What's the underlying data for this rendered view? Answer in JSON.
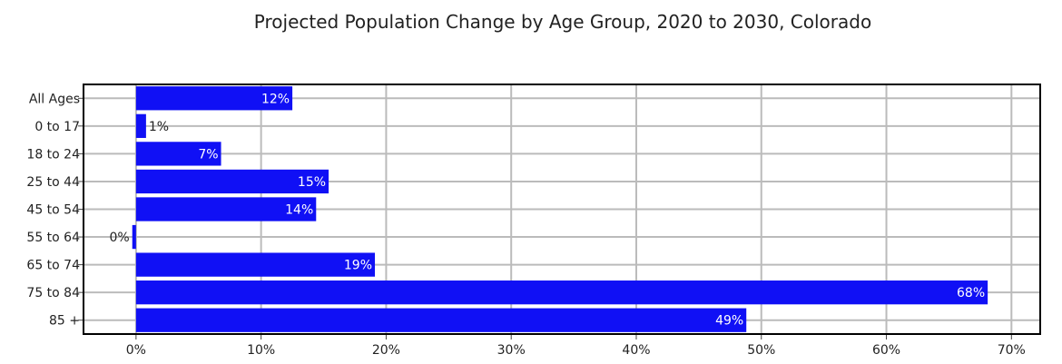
{
  "chart_data": {
    "type": "bar",
    "orientation": "horizontal",
    "title": "Projected Population Change by Age Group, 2020 to 2030, Colorado",
    "categories": [
      "All Ages",
      "0 to 17",
      "18 to 24",
      "25 to 44",
      "45 to 54",
      "55 to 64",
      "65 to 74",
      "75 to 84",
      "85 +"
    ],
    "values": [
      12.5,
      0.8,
      6.8,
      15.4,
      14.4,
      -0.3,
      19.1,
      68.1,
      48.8
    ],
    "data_labels": [
      "12%",
      "1%",
      "7%",
      "15%",
      "14%",
      "0%",
      "19%",
      "68%",
      "49%"
    ],
    "xlim": [
      -4.2,
      72.3
    ],
    "x_ticks": [
      0,
      10,
      20,
      30,
      40,
      50,
      60,
      70
    ],
    "x_tick_labels": [
      "0%",
      "10%",
      "20%",
      "30%",
      "40%",
      "50%",
      "60%",
      "70%"
    ],
    "xlabel": "",
    "ylabel": "",
    "grid": true,
    "bar_color": "#1010F5",
    "grid_color": "#BBBBBB"
  }
}
